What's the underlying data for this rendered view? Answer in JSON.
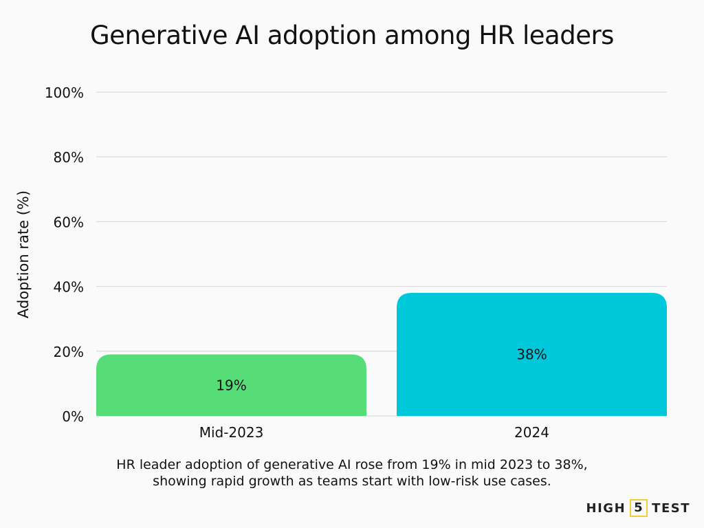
{
  "chart_data": {
    "type": "bar",
    "title": "Generative AI adoption among HR leaders",
    "xlabel": "",
    "ylabel": "Adoption rate (%)",
    "categories": [
      "Mid-2023",
      "2024"
    ],
    "values": [
      19,
      38
    ],
    "data_labels": [
      "19%",
      "38%"
    ],
    "colors": [
      "#57dd78",
      "#00c8db"
    ],
    "ylim": [
      0,
      100
    ],
    "yticks": [
      0,
      20,
      40,
      60,
      80,
      100
    ],
    "ytick_labels": [
      "0%",
      "20%",
      "40%",
      "60%",
      "80%",
      "100%"
    ],
    "grid": true,
    "legend": "none"
  },
  "caption": {
    "line1": "HR leader adoption of generative AI rose from 19% in mid 2023 to 38%,",
    "line2": "showing rapid growth as teams start with low-risk use cases."
  },
  "logo": {
    "part1": "HIGH",
    "part2": "5",
    "part3": "TEST",
    "accent": "#f2cc3a"
  }
}
